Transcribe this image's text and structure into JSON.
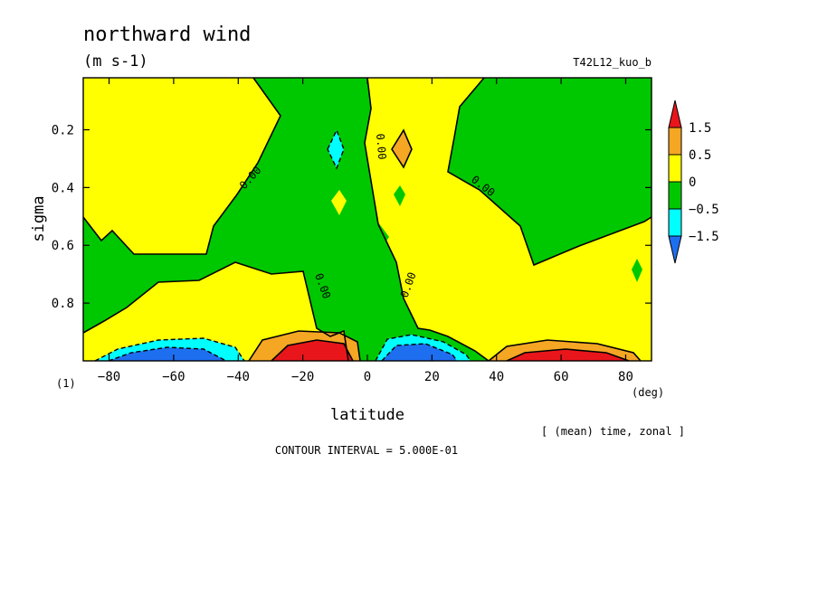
{
  "chart_data": {
    "type": "contour",
    "title": "northward wind",
    "subtitle": "(m s-1)",
    "experiment": "T42L12_kuo_b",
    "xlabel": "latitude",
    "xunit": "(deg)",
    "ylabel": "sigma",
    "corner_label": "(1)",
    "averaging_note": "[ (mean) time, zonal ]",
    "contour_interval_text": "CONTOUR INTERVAL = 5.000E-01",
    "xlim": [
      -88,
      88
    ],
    "ylim": [
      1.0,
      0.02
    ],
    "x_ticks": [
      -80,
      -60,
      -40,
      -20,
      0,
      20,
      40,
      60,
      80
    ],
    "x_tick_labels": [
      "−80",
      "−60",
      "−40",
      "−20",
      "0",
      "20",
      "40",
      "60",
      "80"
    ],
    "y_ticks": [
      0.2,
      0.4,
      0.6,
      0.8
    ],
    "y_tick_labels": [
      "0.2",
      "0.4",
      "0.6",
      "0.8"
    ],
    "contour_labels": [
      "0.00",
      "0.00",
      "0.00",
      "0.00",
      "0.00"
    ],
    "colorbar": {
      "labels": [
        "1.5",
        "0.5",
        "0",
        "−0.5",
        "−1.5"
      ],
      "colors": [
        "#e8161b",
        "#f5a623",
        "#ffff00",
        "#00c800",
        "#00ffff",
        "#1e6ef0"
      ]
    },
    "region_colors": {
      "strong_pos": "#e8161b",
      "pos": "#f5a623",
      "weak_pos": "#ffff00",
      "weak_neg": "#00c800",
      "neg": "#00ffff",
      "strong_neg": "#1e6ef0"
    },
    "features": [
      {
        "kind": "max",
        "x": -13,
        "y": 0.97,
        "value": 2.0
      },
      {
        "kind": "min",
        "x": 12,
        "y": 0.97,
        "value": -1.6
      },
      {
        "kind": "max",
        "x": 60,
        "y": 0.97,
        "value": 1.2
      },
      {
        "kind": "min",
        "x": -60,
        "y": 0.97,
        "value": -1.3
      },
      {
        "kind": "min",
        "x": -10,
        "y": 0.28,
        "value": -0.6
      },
      {
        "kind": "max",
        "x": 10,
        "y": 0.28,
        "value": 0.6
      }
    ]
  }
}
